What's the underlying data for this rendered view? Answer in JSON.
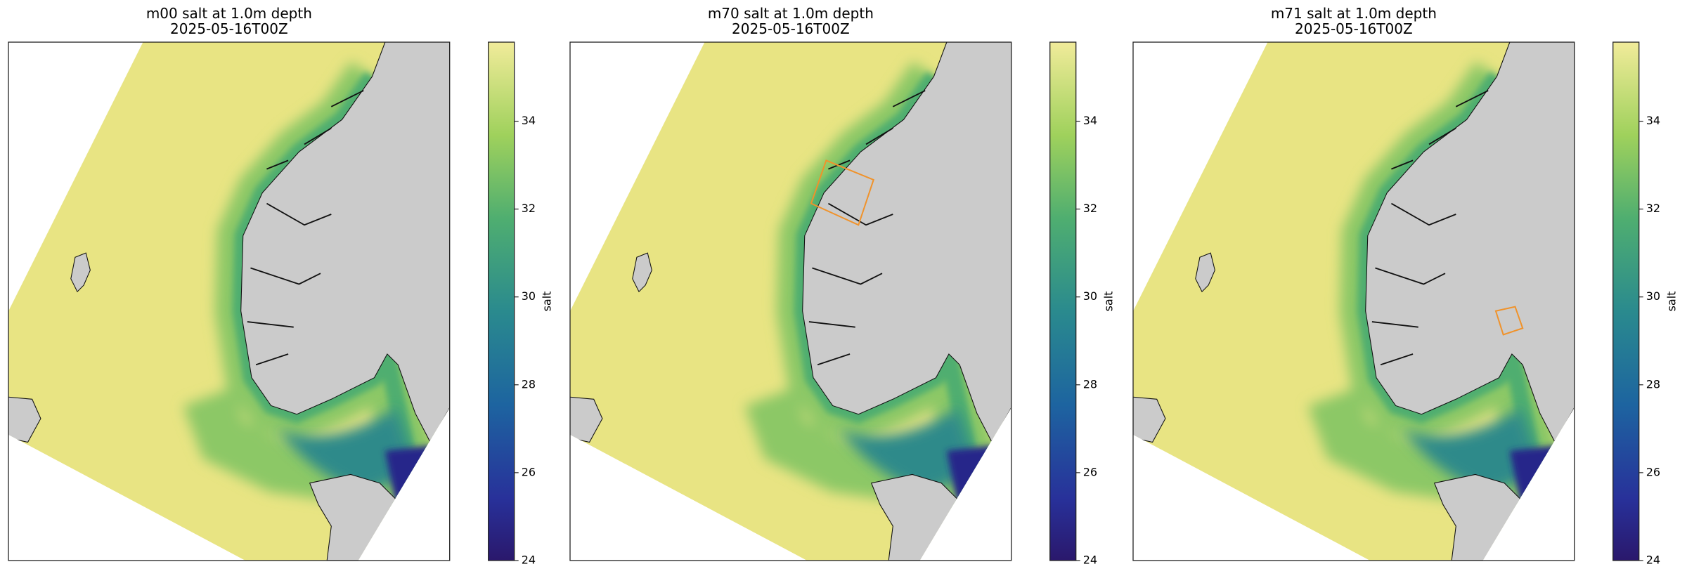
{
  "panels": [
    {
      "title": "m00 salt at 1.0m depth",
      "date": "2025-05-16T00Z",
      "colorbar": {
        "label": "salt",
        "lim": [
          24,
          35.8
        ],
        "ticks": [
          24,
          26,
          28,
          30,
          32,
          34
        ]
      }
    },
    {
      "title": "m70 salt at 1.0m depth",
      "date": "2025-05-16T00Z",
      "colorbar": {
        "label": "salt",
        "lim": [
          24,
          35.8
        ],
        "ticks": [
          24,
          26,
          28,
          30,
          32,
          34
        ]
      }
    },
    {
      "title": "m71 salt at 1.0m depth",
      "date": "2025-05-16T00Z",
      "colorbar": {
        "label": "salt",
        "lim": [
          24,
          35.8
        ],
        "ticks": [
          24,
          26,
          28,
          30,
          32,
          34
        ]
      }
    }
  ]
}
